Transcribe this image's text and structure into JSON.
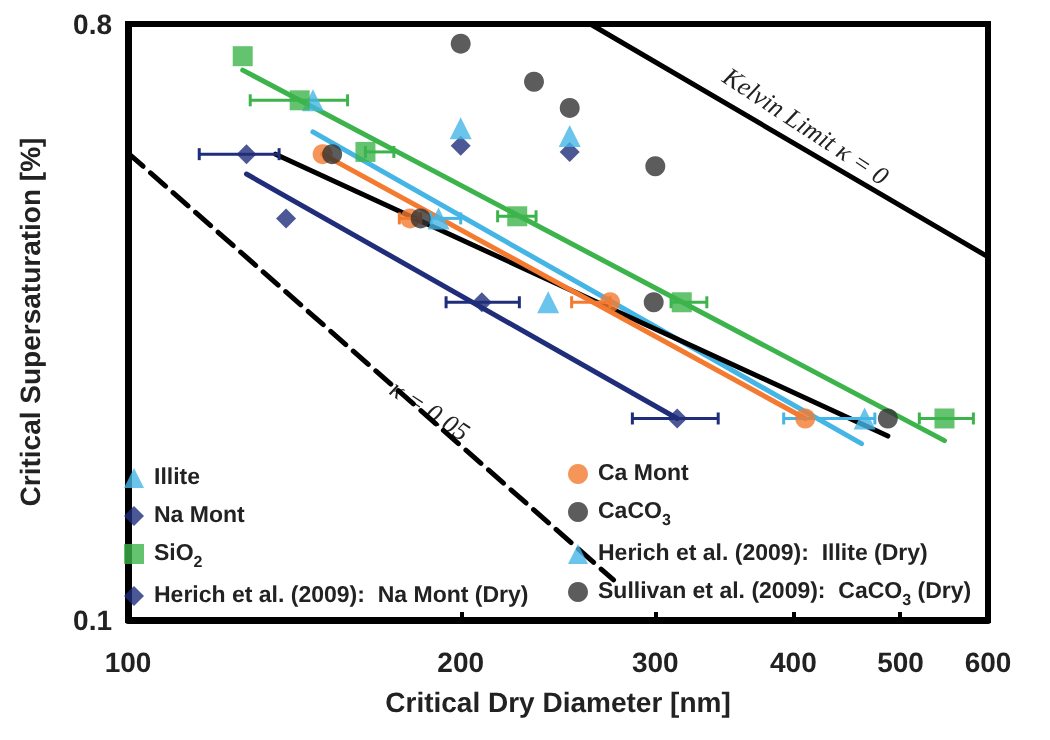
{
  "chart_data": {
    "type": "scatter",
    "xlabel": "Critical Dry Diameter [nm]",
    "ylabel": "Critical Supersaturation [%]",
    "log": "xy",
    "xlim": [
      100,
      600
    ],
    "xticks": [
      100,
      200,
      300,
      400,
      500,
      600
    ],
    "ylim": [
      0.1,
      0.8
    ],
    "yticks": [
      0.1,
      0.8
    ],
    "grid": false,
    "legend": "bottom",
    "annotations": [
      "Kelvin Limit κ = 0",
      "κ = 0.05"
    ],
    "series": [
      {
        "name": "Illite",
        "marker": "triangle",
        "color": "#45b5e6",
        "x": [
          147,
          191,
          240,
          464
        ],
        "values": [
          0.613,
          0.406,
          0.303,
          0.202
        ],
        "xerrors": [
          null,
          [
            188,
            200
          ],
          null,
          [
            392,
            474
          ]
        ]
      },
      {
        "name": "Na Mont",
        "marker": "diamond",
        "color": "#1f2d7a",
        "x": [
          128,
          139,
          209,
          314
        ],
        "values": [
          0.508,
          0.406,
          0.303,
          0.202
        ],
        "xerrors": [
          [
            116,
            137
          ],
          null,
          [
            194,
            226
          ],
          [
            286,
            342
          ]
        ]
      },
      {
        "name": "SiO$_{2}$",
        "marker": "square",
        "color": "#3cb44b",
        "x": [
          127,
          143,
          164,
          225,
          317,
          548
        ],
        "values": [
          0.715,
          0.613,
          0.512,
          0.409,
          0.303,
          0.202
        ],
        "xerrors": [
          null,
          [
            129,
            158
          ],
          [
            164,
            174
          ],
          [
            216,
            234
          ],
          [
            310,
            334
          ],
          [
            520,
            582
          ]
        ]
      },
      {
        "name": "Herich et al. (2009):  Na Mont (Dry)",
        "marker": "diamond",
        "color": "#1f2d7a",
        "x": [
          200,
          251
        ],
        "values": [
          0.523,
          0.512
        ]
      },
      {
        "name": "Ca Mont",
        "marker": "circle",
        "color": "#f47a30",
        "x": [
          150,
          180,
          273,
          410
        ],
        "values": [
          0.508,
          0.406,
          0.303,
          0.202
        ],
        "xerrors": [
          null,
          [
            176,
            184
          ],
          [
            252,
            273
          ],
          null
        ]
      },
      {
        "name": "CaCO$_{3}$",
        "marker": "circle",
        "color": "#333333",
        "x": [
          153,
          184,
          299,
          487
        ],
        "values": [
          0.508,
          0.406,
          0.303,
          0.202
        ]
      },
      {
        "name": "Herich et al. (2009):  Illite (Dry)",
        "marker": "triangle",
        "color": "#45b5e6",
        "x": [
          200,
          251
        ],
        "values": [
          0.556,
          0.541
        ]
      },
      {
        "name": "Sullivan et al. (2009):  CaCO$_{3}$ (Dry)",
        "marker": "circle",
        "color": "#333333",
        "x": [
          200,
          233,
          251,
          300
        ],
        "values": [
          0.747,
          0.654,
          0.597,
          0.487
        ]
      },
      {
        "type": "line",
        "color": "#3cb44b",
        "x": [
          127,
          548
        ],
        "values": [
          0.681,
          0.187
        ]
      },
      {
        "type": "line",
        "color": "#45b5e6",
        "x": [
          147,
          461
        ],
        "values": [
          0.549,
          0.185
        ]
      },
      {
        "type": "line",
        "color": "#000000",
        "x": [
          136,
          487
        ],
        "values": [
          0.508,
          0.19
        ]
      },
      {
        "type": "line",
        "color": "#f47a30",
        "x": [
          150,
          410
        ],
        "values": [
          0.508,
          0.202
        ]
      },
      {
        "type": "line",
        "color": "#1f2d7a",
        "x": [
          128,
          314
        ],
        "values": [
          0.474,
          0.202
        ]
      },
      {
        "type": "line",
        "color": "#000000",
        "x": [
          262,
          600
        ],
        "values": [
          0.8,
          0.355
        ]
      },
      {
        "type": "line",
        "color": "#000000",
        "line_style": "dashed",
        "x": [
          100,
          275
        ],
        "values": [
          0.51,
          0.115
        ]
      }
    ]
  }
}
